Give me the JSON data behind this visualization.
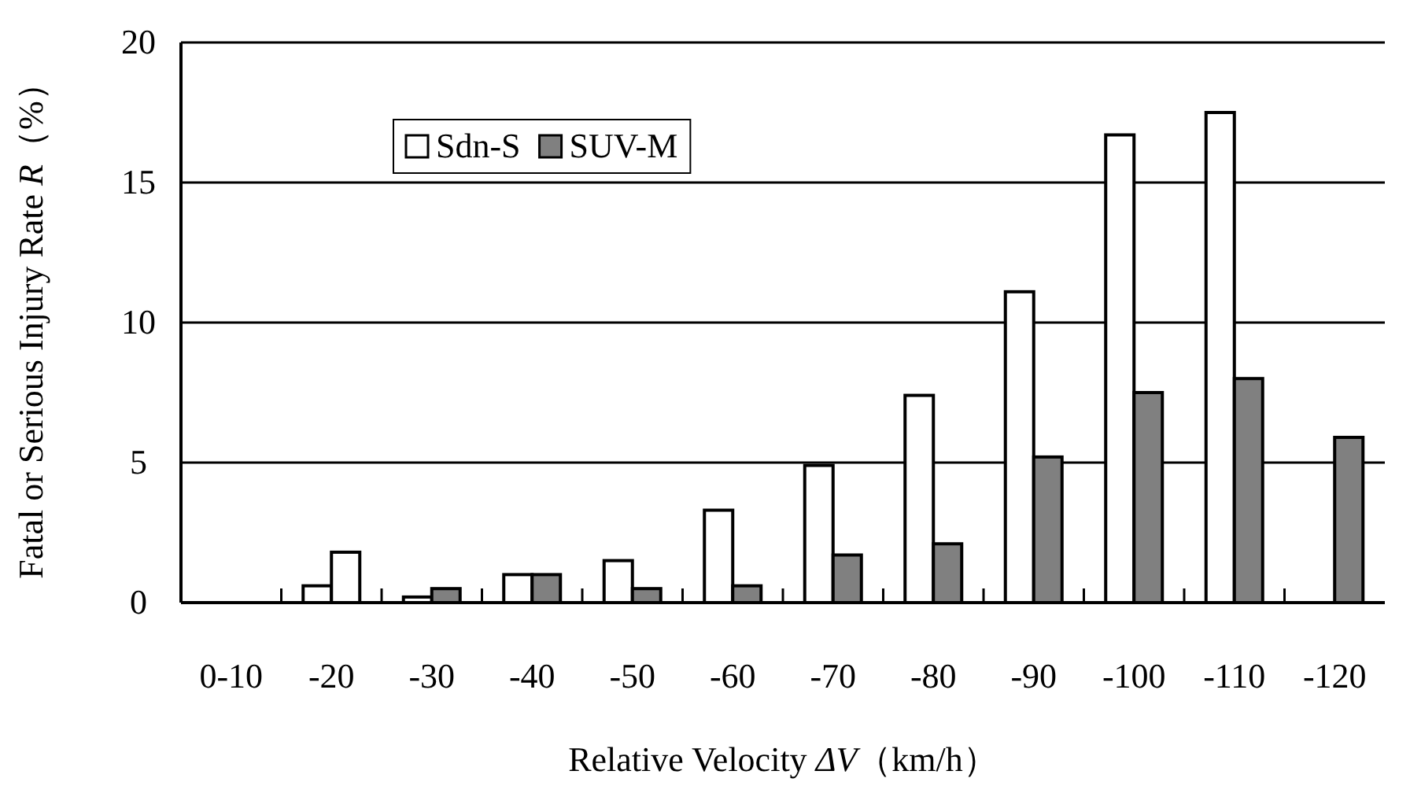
{
  "chart_data": {
    "type": "bar",
    "xlabel": "Relative Velocity *ΔV*（km/h）",
    "ylabel": "Fatal or Serious Injury Rate *R*（%）",
    "categories": [
      "0-10",
      "-20",
      "-30",
      "-40",
      "-50",
      "-60",
      "-70",
      "-80",
      "-90",
      "-100",
      "-110",
      "-120"
    ],
    "series": [
      {
        "name": "Sdn-S",
        "color": "#ffffff",
        "values": [
          null,
          0.6,
          0.2,
          1.0,
          1.5,
          3.3,
          4.9,
          7.4,
          11.1,
          16.7,
          17.5,
          null
        ]
      },
      {
        "name": "SUV-M",
        "color": "#808080",
        "colors": [
          null,
          "#ffffff",
          "#808080",
          "#808080",
          "#808080",
          "#808080",
          "#808080",
          "#808080",
          "#808080",
          "#808080",
          "#808080",
          "#808080"
        ],
        "values": [
          null,
          1.8,
          0.5,
          1.0,
          0.5,
          0.6,
          1.7,
          2.1,
          5.2,
          7.5,
          8.0,
          5.9
        ]
      }
    ],
    "ylim": [
      0,
      20
    ],
    "yticks": [
      0,
      5,
      10,
      15,
      20
    ],
    "grid": "y",
    "legend": "top left"
  }
}
